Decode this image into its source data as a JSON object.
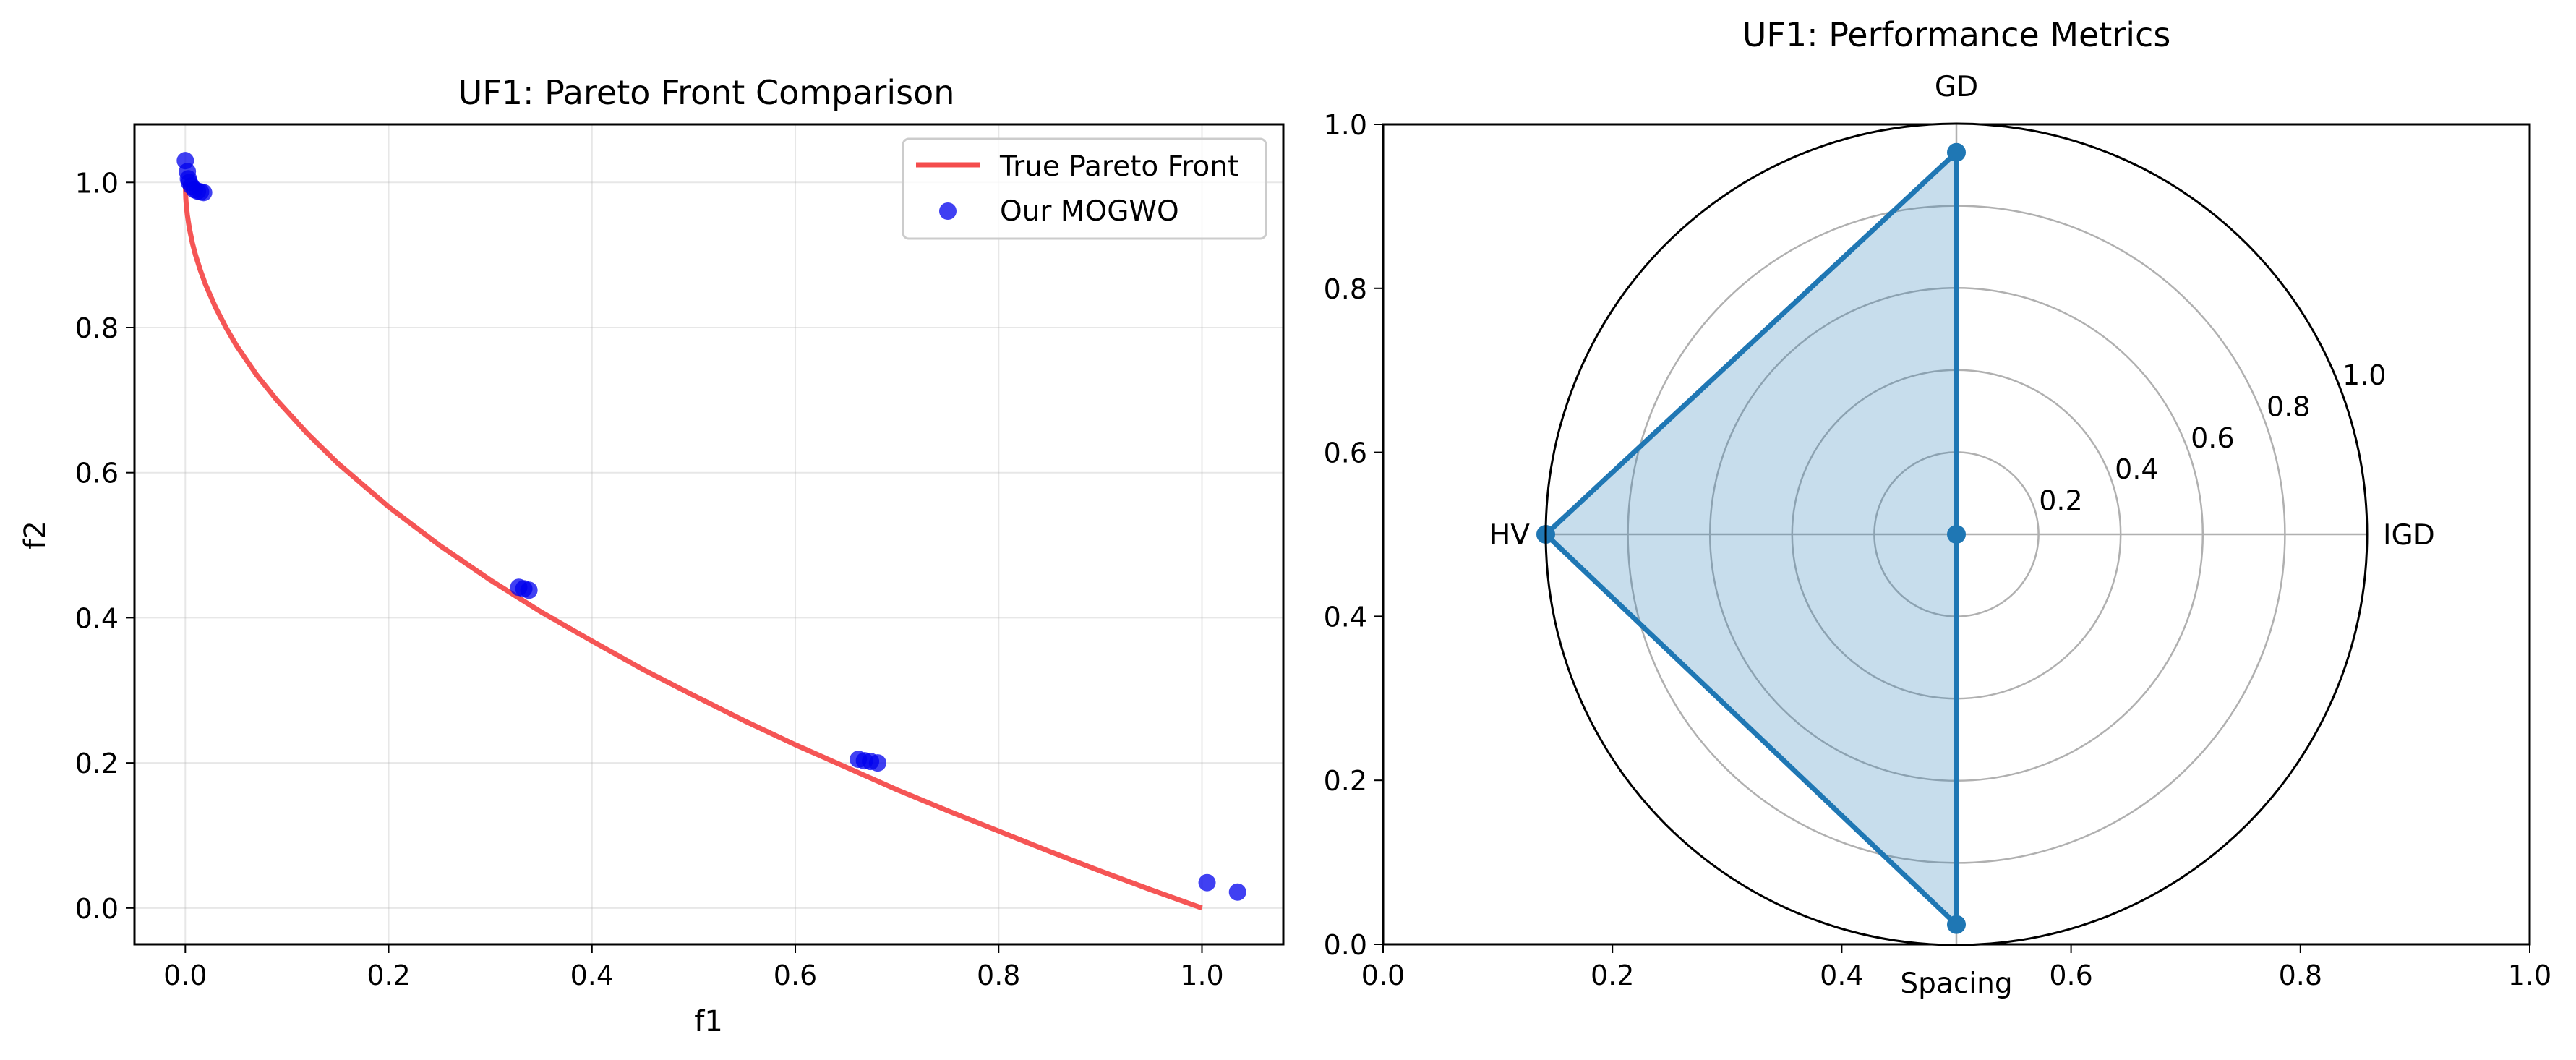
{
  "chart_data": [
    {
      "type": "line",
      "title": "UF1: Pareto Front Comparison",
      "xlabel": "f1",
      "ylabel": "f2",
      "xlim": [
        -0.05,
        1.08
      ],
      "ylim": [
        -0.05,
        1.08
      ],
      "xticks": [
        0.0,
        0.2,
        0.4,
        0.6,
        0.8,
        1.0
      ],
      "yticks": [
        0.0,
        0.2,
        0.4,
        0.6,
        0.8,
        1.0
      ],
      "xtick_labels": [
        "0.0",
        "0.2",
        "0.4",
        "0.6",
        "0.8",
        "1.0"
      ],
      "ytick_labels": [
        "0.0",
        "0.2",
        "0.4",
        "0.6",
        "0.8",
        "1.0"
      ],
      "grid": true,
      "legend_position": "top-right",
      "series": [
        {
          "name": "True Pareto Front",
          "type": "line",
          "color": "#f44c4c",
          "function": "f2 = 1 - sqrt(f1)",
          "x": [
            0.0,
            0.0005,
            0.001,
            0.002,
            0.004,
            0.007,
            0.01,
            0.015,
            0.02,
            0.03,
            0.04,
            0.05,
            0.07,
            0.09,
            0.12,
            0.15,
            0.2,
            0.25,
            0.3,
            0.35,
            0.4,
            0.45,
            0.5,
            0.55,
            0.6,
            0.65,
            0.7,
            0.75,
            0.8,
            0.85,
            0.9,
            0.95,
            1.0
          ],
          "y": [
            1.0,
            0.978,
            0.968,
            0.955,
            0.937,
            0.916,
            0.9,
            0.878,
            0.859,
            0.827,
            0.8,
            0.776,
            0.735,
            0.7,
            0.654,
            0.613,
            0.553,
            0.5,
            0.452,
            0.408,
            0.368,
            0.329,
            0.293,
            0.258,
            0.225,
            0.194,
            0.163,
            0.134,
            0.106,
            0.078,
            0.051,
            0.025,
            0.0
          ]
        },
        {
          "name": "Our MOGWO",
          "type": "scatter",
          "color": "#0000ee",
          "x": [
            0.0,
            0.002,
            0.003,
            0.004,
            0.006,
            0.009,
            0.012,
            0.015,
            0.018,
            0.328,
            0.333,
            0.338,
            0.662,
            0.668,
            0.674,
            0.681,
            1.005,
            1.035
          ],
          "y": [
            1.03,
            1.015,
            1.005,
            1.0,
            0.995,
            0.99,
            0.988,
            0.987,
            0.986,
            0.442,
            0.44,
            0.438,
            0.205,
            0.203,
            0.202,
            0.2,
            0.035,
            0.022
          ]
        }
      ]
    },
    {
      "type": "radar",
      "title": "UF1: Performance Metrics",
      "axes": [
        "GD",
        "IGD",
        "Spacing",
        "HV"
      ],
      "values": [
        0.93,
        0.0,
        0.95,
        1.0
      ],
      "rticks": [
        0.2,
        0.4,
        0.6,
        0.8,
        1.0
      ],
      "rtick_labels": [
        "0.2",
        "0.4",
        "0.6",
        "0.8",
        "1.0"
      ],
      "rlim": [
        0,
        1
      ],
      "color": "#1f77b4",
      "fill_color": "#1f77b4",
      "fill_opacity": 0.25,
      "background_axes": {
        "xlim": [
          0,
          1
        ],
        "ylim": [
          0,
          1
        ],
        "xticks": [
          0.0,
          0.2,
          0.4,
          0.6,
          0.8,
          1.0
        ],
        "yticks": [
          0.0,
          0.2,
          0.4,
          0.6,
          0.8,
          1.0
        ],
        "xtick_labels": [
          "0.0",
          "0.2",
          "0.4",
          "0.6",
          "0.8",
          "1.0"
        ],
        "ytick_labels": [
          "0.0",
          "0.2",
          "0.4",
          "0.6",
          "0.8",
          "1.0"
        ]
      }
    }
  ]
}
